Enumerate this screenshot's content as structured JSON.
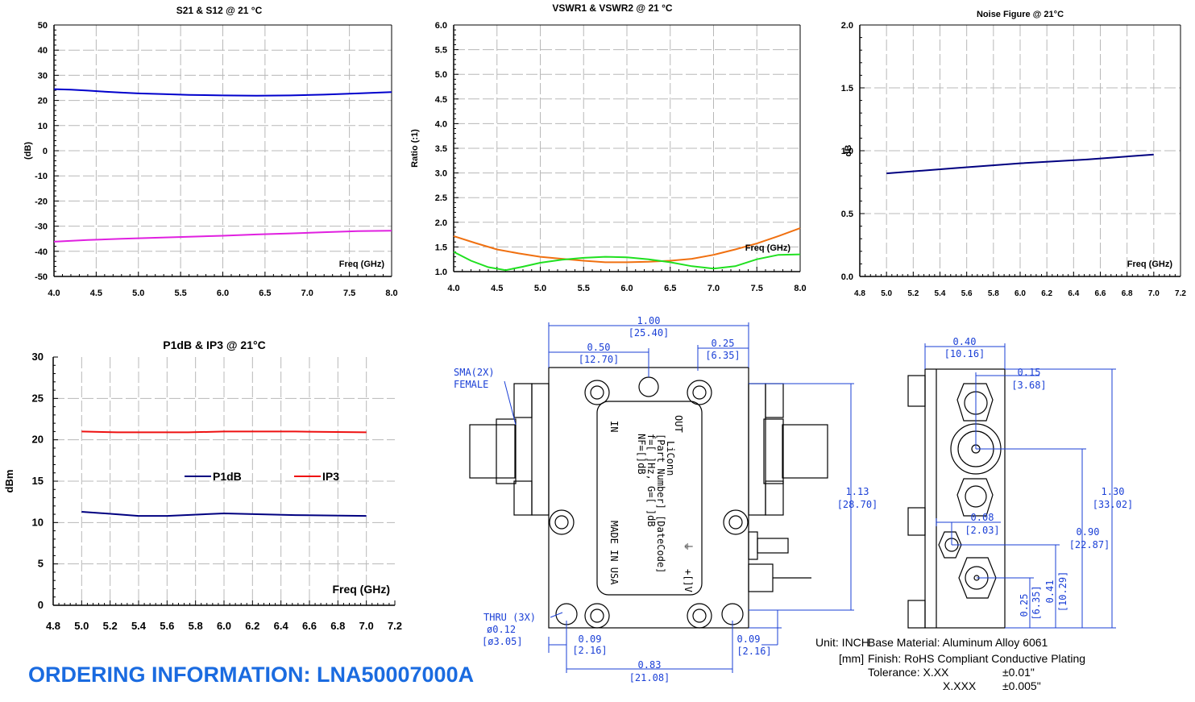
{
  "charts": {
    "s21": {
      "title": "S21 & S12 @ 21 °C",
      "ylabel": "(dB)",
      "xlabel": "Freq (GHz)"
    },
    "vswr": {
      "title": "VSWR1 & VSWR2 @ 21 °C",
      "ylabel": "Ratio (:1)",
      "xlabel": "Freq (GHz)"
    },
    "nf": {
      "title": "Noise Figure @ 21°C",
      "ylabel": "dB",
      "xlabel": "Freq (GHz)"
    },
    "p1db": {
      "title": "P1dB & IP3 @ 21°C",
      "ylabel": "dBm",
      "xlabel": "Freq (GHz)",
      "legend": [
        "P1dB",
        "IP3"
      ]
    }
  },
  "chart_data": [
    {
      "id": "s21",
      "type": "line",
      "title": "S21 & S12 @ 21 °C",
      "xlabel": "Freq (GHz)",
      "ylabel": "(dB)",
      "xlim": [
        4.0,
        8.0
      ],
      "ylim": [
        -50,
        50
      ],
      "xticks": [
        "4.0",
        "4.5",
        "5.0",
        "5.5",
        "6.0",
        "6.5",
        "7.0",
        "7.5",
        "8.0"
      ],
      "yticks": [
        "50",
        "40",
        "30",
        "20",
        "10",
        "0",
        "-10",
        "-20",
        "-30",
        "-40",
        "-50"
      ],
      "grid": true,
      "series": [
        {
          "color": "#0000cc",
          "x": [
            4.0,
            4.2,
            4.4,
            4.6,
            4.8,
            5.0,
            5.3,
            5.6,
            6.0,
            6.4,
            6.8,
            7.2,
            7.6,
            8.0
          ],
          "y": [
            24.5,
            24.3,
            23.9,
            23.5,
            23.1,
            22.8,
            22.5,
            22.2,
            22.0,
            21.9,
            22.0,
            22.3,
            22.8,
            23.3
          ]
        },
        {
          "color": "#e020e0",
          "x": [
            4.0,
            4.4,
            4.8,
            5.2,
            5.6,
            6.0,
            6.4,
            6.8,
            7.2,
            7.6,
            8.0
          ],
          "y": [
            -36.2,
            -35.5,
            -35.0,
            -34.6,
            -34.2,
            -33.8,
            -33.3,
            -32.9,
            -32.4,
            -32.0,
            -31.8
          ]
        }
      ]
    },
    {
      "id": "vswr",
      "type": "line",
      "title": "VSWR1 & VSWR2 @ 21 °C",
      "xlabel": "Freq (GHz)",
      "ylabel": "Ratio (:1)",
      "xlim": [
        4.0,
        8.0
      ],
      "ylim": [
        1.0,
        6.0
      ],
      "xticks": [
        "4.0",
        "4.5",
        "5.0",
        "5.5",
        "6.0",
        "6.5",
        "7.0",
        "7.5",
        "8.0"
      ],
      "yticks": [
        "6.0",
        "5.5",
        "5.0",
        "4.5",
        "4.0",
        "3.5",
        "3.0",
        "2.5",
        "2.0",
        "1.5",
        "1.0"
      ],
      "grid": true,
      "series": [
        {
          "color": "#f07010",
          "x": [
            4.0,
            4.25,
            4.5,
            4.75,
            5.0,
            5.25,
            5.5,
            5.75,
            6.0,
            6.25,
            6.5,
            6.75,
            7.0,
            7.25,
            7.5,
            7.75,
            8.0
          ],
          "y": [
            1.72,
            1.58,
            1.45,
            1.37,
            1.3,
            1.26,
            1.22,
            1.19,
            1.19,
            1.2,
            1.22,
            1.26,
            1.34,
            1.45,
            1.57,
            1.72,
            1.88
          ]
        },
        {
          "color": "#20e020",
          "x": [
            4.0,
            4.2,
            4.4,
            4.6,
            4.8,
            5.0,
            5.25,
            5.5,
            5.75,
            6.0,
            6.25,
            6.5,
            6.75,
            7.0,
            7.25,
            7.5,
            7.75,
            8.0
          ],
          "y": [
            1.4,
            1.22,
            1.09,
            1.03,
            1.1,
            1.18,
            1.24,
            1.28,
            1.3,
            1.29,
            1.25,
            1.19,
            1.11,
            1.06,
            1.11,
            1.25,
            1.34,
            1.35
          ]
        }
      ]
    },
    {
      "id": "nf",
      "type": "line",
      "title": "Noise Figure @ 21°C",
      "xlabel": "Freq (GHz)",
      "ylabel": "dB",
      "xlim": [
        4.8,
        7.2
      ],
      "ylim": [
        0.0,
        2.0
      ],
      "xticks": [
        "4.8",
        "5.0",
        "5.2",
        "5.4",
        "5.6",
        "5.8",
        "6.0",
        "6.2",
        "6.4",
        "6.6",
        "6.8",
        "7.0",
        "7.2"
      ],
      "yticks": [
        "2.0",
        "1.5",
        "1.0",
        "0.5",
        "0.0"
      ],
      "grid": true,
      "series": [
        {
          "color": "#000080",
          "x": [
            5.0,
            5.5,
            6.0,
            6.5,
            7.0
          ],
          "y": [
            0.82,
            0.86,
            0.9,
            0.93,
            0.97
          ]
        }
      ]
    },
    {
      "id": "p1db",
      "type": "line",
      "title": "P1dB & IP3 @ 21°C",
      "xlabel": "Freq (GHz)",
      "ylabel": "dBm",
      "xlim": [
        4.8,
        7.2
      ],
      "ylim": [
        0,
        30
      ],
      "xticks": [
        "4.8",
        "5.0",
        "5.2",
        "5.4",
        "5.6",
        "5.8",
        "6.0",
        "6.2",
        "6.4",
        "6.6",
        "6.8",
        "7.0",
        "7.2"
      ],
      "yticks": [
        "30",
        "25",
        "20",
        "15",
        "10",
        "5",
        "0"
      ],
      "grid": true,
      "legend": "center",
      "series": [
        {
          "name": "P1dB",
          "color": "#000080",
          "x": [
            5.0,
            5.25,
            5.4,
            5.5,
            5.6,
            6.0,
            6.5,
            7.0
          ],
          "y": [
            11.3,
            11.0,
            10.8,
            10.8,
            10.8,
            11.1,
            10.9,
            10.8
          ]
        },
        {
          "name": "IP3",
          "color": "#ee1010",
          "x": [
            5.0,
            5.25,
            5.5,
            5.75,
            6.0,
            6.5,
            7.0
          ],
          "y": [
            21.0,
            20.9,
            20.9,
            20.9,
            21.0,
            21.0,
            20.9
          ]
        }
      ]
    }
  ],
  "drawing": {
    "front": {
      "dim_width_in": "1.00",
      "dim_width_mm": "[25.40]",
      "dim_half_in": "0.50",
      "dim_half_mm": "[12.70]",
      "dim_quarter_in": "0.25",
      "dim_quarter_mm": "[6.35]",
      "dim_height_in": "1.13",
      "dim_height_mm": "[28.70]",
      "dim_hole_left_in": "0.09",
      "dim_hole_left_mm": "[2.16]",
      "dim_hole_right_in": "0.09",
      "dim_hole_right_mm": "[2.16]",
      "dim_holes_in": "0.83",
      "dim_holes_mm": "[21.08]",
      "sma_label_1": "SMA(2X)",
      "sma_label_2": "FEMALE",
      "thru_1": "THRU (3X)",
      "thru_2": "ø0.12",
      "thru_3": "[ø3.05]",
      "label_in": "IN",
      "label_out": "OUT",
      "label_line1": "LiConn",
      "label_line2": "[Part Number] [DateCode]",
      "label_line3": "f=[ ]Hz, G=[ ]dB",
      "label_line4": "NF=[]dB",
      "label_made": "MADE IN USA",
      "label_gnd": "⏚",
      "label_v": "+[]V"
    },
    "side": {
      "dim_depth_in": "0.40",
      "dim_depth_mm": "[10.16]",
      "dim_015_in": "0.15",
      "dim_015_mm": "[3.68]",
      "dim_008_in": "0.08",
      "dim_008_mm": "[2.03]",
      "dim_130_in": "1.30",
      "dim_130_mm": "[33.02]",
      "dim_090_in": "0.90",
      "dim_090_mm": "[22.87]",
      "dim_041_in": "0.41",
      "dim_041_mm": "[10.29]",
      "dim_025_in": "0.25",
      "dim_025_mm": "[6.35]"
    }
  },
  "notes": {
    "unit1": "Unit: INCH",
    "unit2": "[mm]",
    "material": "Base Material: Aluminum Alloy 6061",
    "finish": "Finish: RoHS Compliant Conductive Plating",
    "tol_label": "Tolerance: X.XX",
    "tol_val1": "±0.01\"",
    "tol_fmt2": "X.XXX",
    "tol_val2": "±0.005\""
  },
  "ordering": "ORDERING INFORMATION: LNA50007000A"
}
